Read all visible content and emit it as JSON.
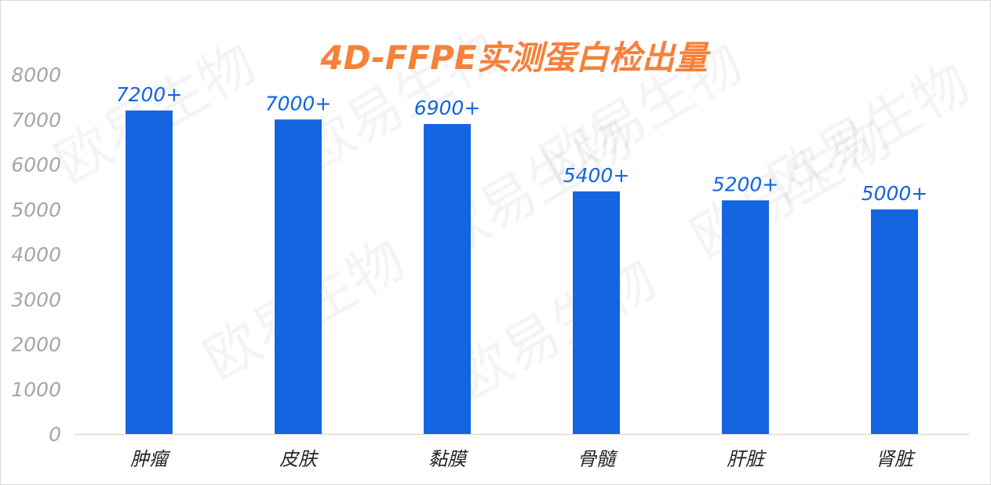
{
  "chart_data": {
    "type": "bar",
    "title": "4D-FFPE实测蛋白检出量",
    "categories": [
      "肿瘤",
      "皮肤",
      "黏膜",
      "骨髓",
      "肝脏",
      "肾脏"
    ],
    "values": [
      7200,
      7000,
      6900,
      5400,
      5200,
      5000
    ],
    "data_labels": [
      "7200+",
      "7000+",
      "6900+",
      "5400+",
      "5200+",
      "5000+"
    ],
    "yticks": [
      "0",
      "1000",
      "2000",
      "3000",
      "4000",
      "5000",
      "6000",
      "7000",
      "8000"
    ],
    "ylim": [
      0,
      8000
    ],
    "grid": false,
    "legend": "none",
    "colors": {
      "bar": "#1565e0",
      "title": "#f5813a",
      "data_label": "#1565e0",
      "axis_text": "#a6a6a6",
      "category_text": "#262626"
    }
  },
  "watermark": {
    "text": "欧易生物"
  }
}
